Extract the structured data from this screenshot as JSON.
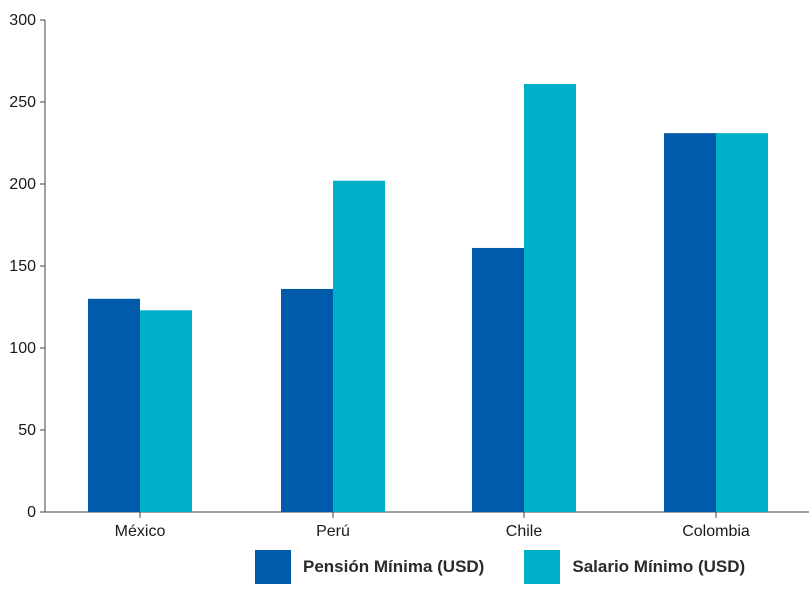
{
  "chart_data": {
    "type": "bar",
    "categories": [
      "México",
      "Perú",
      "Chile",
      "Colombia"
    ],
    "series": [
      {
        "name": "Pensión Mínima (USD)",
        "values": [
          130,
          136,
          161,
          231
        ],
        "color": "#005baa"
      },
      {
        "name": "Salario Mínimo (USD)",
        "values": [
          123,
          202,
          261,
          231
        ],
        "color": "#00b0c8"
      }
    ],
    "yticks": [
      0,
      50,
      100,
      150,
      200,
      250,
      300
    ],
    "ylim": [
      0,
      300
    ],
    "title": "",
    "xlabel": "",
    "ylabel": "",
    "grid": false,
    "legend_position": "bottom"
  }
}
